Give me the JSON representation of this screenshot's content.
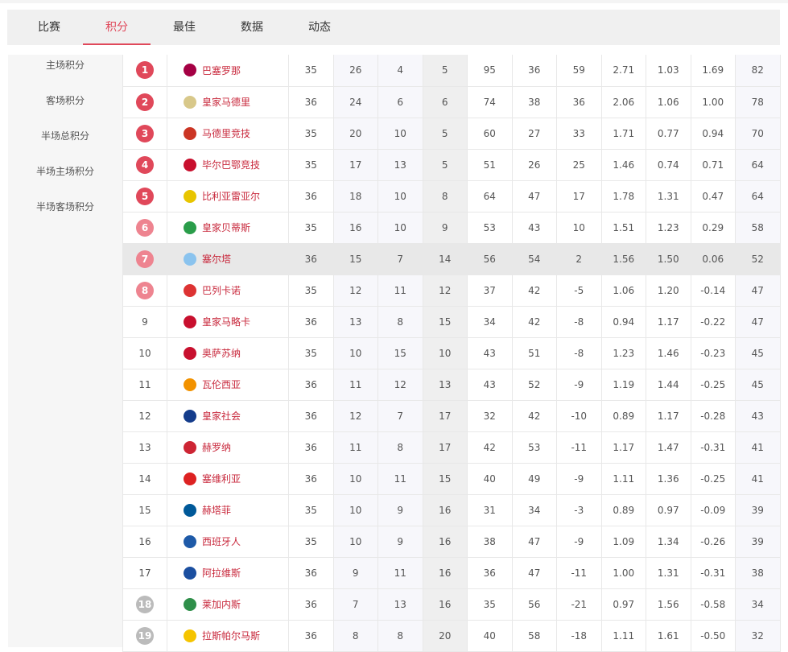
{
  "tabs": [
    {
      "label": "比赛"
    },
    {
      "label": "积分",
      "active": true
    },
    {
      "label": "最佳"
    },
    {
      "label": "数据"
    },
    {
      "label": "动态"
    }
  ],
  "sidebar": [
    {
      "label": "主场积分"
    },
    {
      "label": "客场积分"
    },
    {
      "label": "半场总积分"
    },
    {
      "label": "半场主场积分"
    },
    {
      "label": "半场客场积分"
    }
  ],
  "colors": {
    "accent": "#e0485a",
    "rank_top": "#e0485a",
    "rank_mid": "#ee8490",
    "rank_bottom": "#bbbbbb",
    "team_link": "#c8283c"
  },
  "highlighted_rank": "7",
  "rows": [
    {
      "rank": "1",
      "badge": "top",
      "team": "巴塞罗那",
      "crest": "#a50044",
      "c": [
        "35",
        "26",
        "4",
        "5",
        "95",
        "36",
        "59",
        "2.71",
        "1.03",
        "1.69",
        "82"
      ]
    },
    {
      "rank": "2",
      "badge": "top",
      "team": "皇家马德里",
      "crest": "#d8c88a",
      "c": [
        "36",
        "24",
        "6",
        "6",
        "74",
        "38",
        "36",
        "2.06",
        "1.06",
        "1.00",
        "78"
      ]
    },
    {
      "rank": "3",
      "badge": "top",
      "team": "马德里竞技",
      "crest": "#cb3524",
      "c": [
        "35",
        "20",
        "10",
        "5",
        "60",
        "27",
        "33",
        "1.71",
        "0.77",
        "0.94",
        "70"
      ]
    },
    {
      "rank": "4",
      "badge": "top",
      "team": "毕尔巴鄂竞技",
      "crest": "#c8102e",
      "c": [
        "35",
        "17",
        "13",
        "5",
        "51",
        "26",
        "25",
        "1.46",
        "0.74",
        "0.71",
        "64"
      ]
    },
    {
      "rank": "5",
      "badge": "top",
      "team": "比利亚雷亚尔",
      "crest": "#e8c500",
      "c": [
        "36",
        "18",
        "10",
        "8",
        "64",
        "47",
        "17",
        "1.78",
        "1.31",
        "0.47",
        "64"
      ]
    },
    {
      "rank": "6",
      "badge": "mid",
      "team": "皇家贝蒂斯",
      "crest": "#2a9d4a",
      "c": [
        "35",
        "16",
        "10",
        "9",
        "53",
        "43",
        "10",
        "1.51",
        "1.23",
        "0.29",
        "58"
      ]
    },
    {
      "rank": "7",
      "badge": "mid",
      "team": "塞尔塔",
      "crest": "#8ac3ee",
      "c": [
        "36",
        "15",
        "7",
        "14",
        "56",
        "54",
        "2",
        "1.56",
        "1.50",
        "0.06",
        "52"
      ]
    },
    {
      "rank": "8",
      "badge": "mid",
      "team": "巴列卡诺",
      "crest": "#d33",
      "c": [
        "35",
        "12",
        "11",
        "12",
        "37",
        "42",
        "-5",
        "1.06",
        "1.20",
        "-0.14",
        "47"
      ]
    },
    {
      "rank": "9",
      "badge": "",
      "team": "皇家马略卡",
      "crest": "#c8102e",
      "c": [
        "36",
        "13",
        "8",
        "15",
        "34",
        "42",
        "-8",
        "0.94",
        "1.17",
        "-0.22",
        "47"
      ]
    },
    {
      "rank": "10",
      "badge": "",
      "team": "奥萨苏纳",
      "crest": "#c8102e",
      "c": [
        "35",
        "10",
        "15",
        "10",
        "43",
        "51",
        "-8",
        "1.23",
        "1.46",
        "-0.23",
        "45"
      ]
    },
    {
      "rank": "11",
      "badge": "",
      "team": "瓦伦西亚",
      "crest": "#f29200",
      "c": [
        "36",
        "11",
        "12",
        "13",
        "43",
        "52",
        "-9",
        "1.19",
        "1.44",
        "-0.25",
        "45"
      ]
    },
    {
      "rank": "12",
      "badge": "",
      "team": "皇家社会",
      "crest": "#143c8b",
      "c": [
        "36",
        "12",
        "7",
        "17",
        "32",
        "42",
        "-10",
        "0.89",
        "1.17",
        "-0.28",
        "43"
      ]
    },
    {
      "rank": "13",
      "badge": "",
      "team": "赫罗纳",
      "crest": "#cd2534",
      "c": [
        "36",
        "11",
        "8",
        "17",
        "42",
        "53",
        "-11",
        "1.17",
        "1.47",
        "-0.31",
        "41"
      ]
    },
    {
      "rank": "14",
      "badge": "",
      "team": "塞维利亚",
      "crest": "#d22",
      "c": [
        "36",
        "10",
        "11",
        "15",
        "40",
        "49",
        "-9",
        "1.11",
        "1.36",
        "-0.25",
        "41"
      ]
    },
    {
      "rank": "15",
      "badge": "",
      "team": "赫塔菲",
      "crest": "#005999",
      "c": [
        "35",
        "10",
        "9",
        "16",
        "31",
        "34",
        "-3",
        "0.89",
        "0.97",
        "-0.09",
        "39"
      ]
    },
    {
      "rank": "16",
      "badge": "",
      "team": "西班牙人",
      "crest": "#1e5aa8",
      "c": [
        "35",
        "10",
        "9",
        "16",
        "38",
        "47",
        "-9",
        "1.09",
        "1.34",
        "-0.26",
        "39"
      ]
    },
    {
      "rank": "17",
      "badge": "",
      "team": "阿拉维斯",
      "crest": "#1b4fa0",
      "c": [
        "36",
        "9",
        "11",
        "16",
        "36",
        "47",
        "-11",
        "1.00",
        "1.31",
        "-0.31",
        "38"
      ]
    },
    {
      "rank": "18",
      "badge": "bottom",
      "team": "莱加内斯",
      "crest": "#2f8f4a",
      "c": [
        "36",
        "7",
        "13",
        "16",
        "35",
        "56",
        "-21",
        "0.97",
        "1.56",
        "-0.58",
        "34"
      ]
    },
    {
      "rank": "19",
      "badge": "bottom",
      "team": "拉斯帕尔马斯",
      "crest": "#f5c400",
      "c": [
        "36",
        "8",
        "8",
        "20",
        "40",
        "58",
        "-18",
        "1.11",
        "1.61",
        "-0.50",
        "32"
      ]
    }
  ]
}
